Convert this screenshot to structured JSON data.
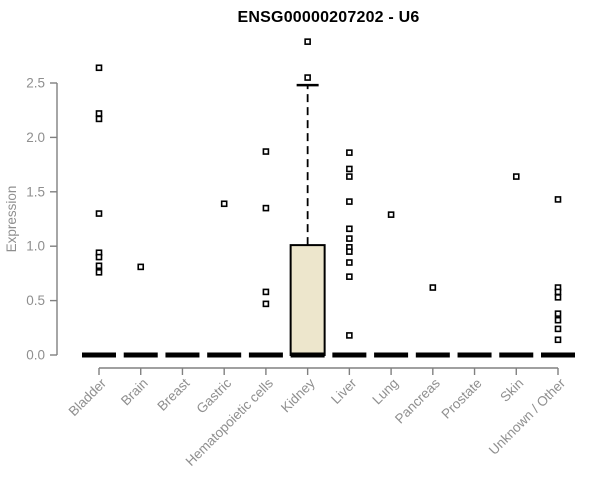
{
  "chart_data": {
    "type": "boxplot",
    "title": "ENSG00000207202 - U6",
    "ylabel": "Expression",
    "xlabel": "",
    "ylim": [
      0,
      2.9
    ],
    "yticks": [
      0,
      0.5,
      1,
      1.5,
      2,
      2.5
    ],
    "grid": false,
    "legend": "none",
    "categories": [
      "Bladder",
      "Brain",
      "Breast",
      "Gastric",
      "Hematopoietic cells",
      "Kidney",
      "Liver",
      "Lung",
      "Pancreas",
      "Prostate",
      "Skin",
      "Unknown / Other"
    ],
    "series": [
      {
        "name": "Bladder",
        "q1": 0,
        "median": 0,
        "q3": 0,
        "whisker_low": 0,
        "whisker_high": 0,
        "outliers": [
          2.64,
          2.22,
          2.17,
          1.3,
          0.94,
          0.9,
          0.82,
          0.76
        ]
      },
      {
        "name": "Brain",
        "q1": 0,
        "median": 0,
        "q3": 0,
        "whisker_low": 0,
        "whisker_high": 0,
        "outliers": [
          0.81
        ]
      },
      {
        "name": "Breast",
        "q1": 0,
        "median": 0,
        "q3": 0,
        "whisker_low": 0,
        "whisker_high": 0,
        "outliers": []
      },
      {
        "name": "Gastric",
        "q1": 0,
        "median": 0,
        "q3": 0,
        "whisker_low": 0,
        "whisker_high": 0,
        "outliers": [
          1.39
        ]
      },
      {
        "name": "Hematopoietic cells",
        "q1": 0,
        "median": 0,
        "q3": 0,
        "whisker_low": 0,
        "whisker_high": 0,
        "outliers": [
          1.87,
          1.35,
          0.58,
          0.47
        ]
      },
      {
        "name": "Kidney",
        "q1": 0,
        "median": 0,
        "q3": 1.01,
        "whisker_low": 0,
        "whisker_high": 2.48,
        "outliers": [
          2.88,
          2.55
        ]
      },
      {
        "name": "Liver",
        "q1": 0,
        "median": 0,
        "q3": 0,
        "whisker_low": 0,
        "whisker_high": 0,
        "outliers": [
          1.86,
          1.71,
          1.64,
          1.41,
          1.16,
          1.07,
          0.99,
          0.95,
          0.85,
          0.72,
          0.18
        ]
      },
      {
        "name": "Lung",
        "q1": 0,
        "median": 0,
        "q3": 0,
        "whisker_low": 0,
        "whisker_high": 0,
        "outliers": [
          1.29
        ]
      },
      {
        "name": "Pancreas",
        "q1": 0,
        "median": 0,
        "q3": 0,
        "whisker_low": 0,
        "whisker_high": 0,
        "outliers": [
          0.62
        ]
      },
      {
        "name": "Prostate",
        "q1": 0,
        "median": 0,
        "q3": 0,
        "whisker_low": 0,
        "whisker_high": 0,
        "outliers": []
      },
      {
        "name": "Skin",
        "q1": 0,
        "median": 0,
        "q3": 0,
        "whisker_low": 0,
        "whisker_high": 0,
        "outliers": [
          1.64
        ]
      },
      {
        "name": "Unknown / Other",
        "q1": 0,
        "median": 0,
        "q3": 0,
        "whisker_low": 0,
        "whisker_high": 0,
        "outliers": [
          1.43,
          0.62,
          0.58,
          0.53,
          0.38,
          0.32,
          0.24,
          0.14
        ]
      }
    ],
    "colors": {
      "box_fill": "#EDE6CC",
      "box_stroke": "#000000",
      "median": "#000000",
      "outlier_stroke": "#000000",
      "outlier_fill": "#ffffff",
      "axis_line": "#808080",
      "tick_text": "#8f8f8f",
      "title_text": "#000000",
      "background": "#ffffff"
    }
  }
}
